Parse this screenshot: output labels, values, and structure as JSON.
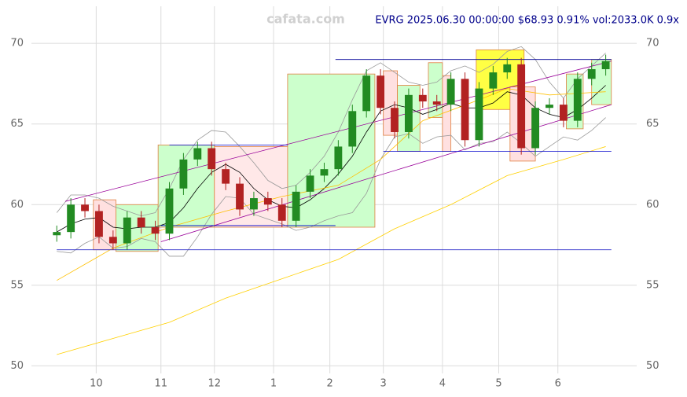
{
  "chart_data": {
    "type": "candlestick",
    "title": "EVRG 2025.06.30 00:00:00 $68.93 0.91% vol:2033.0K 0.9x",
    "watermark": "cafata.com",
    "xlim": [
      -9,
      206
    ],
    "ylim": [
      48.8,
      72.3
    ],
    "yticks": [
      50,
      55,
      60,
      65,
      70
    ],
    "xticks": [
      {
        "value": 14,
        "label": "10"
      },
      {
        "value": 37,
        "label": "11"
      },
      {
        "value": 56,
        "label": "12"
      },
      {
        "value": 77,
        "label": "1"
      },
      {
        "value": 97,
        "label": "2"
      },
      {
        "value": 116,
        "label": "3"
      },
      {
        "value": 137,
        "label": "4"
      },
      {
        "value": 157,
        "label": "5"
      },
      {
        "value": 178,
        "label": "6"
      }
    ],
    "grid": true,
    "up_color": "#228b22",
    "down_color": "#b22222",
    "x": [
      0,
      5,
      10,
      15,
      20,
      25,
      30,
      35,
      40,
      45,
      50,
      55,
      60,
      65,
      70,
      75,
      80,
      85,
      90,
      95,
      100,
      105,
      110,
      115,
      120,
      125,
      130,
      135,
      140,
      145,
      150,
      155,
      160,
      165,
      170,
      175,
      180,
      185,
      190,
      195
    ],
    "open": [
      58.1,
      58.3,
      60.0,
      59.6,
      58.0,
      57.6,
      59.2,
      58.6,
      58.2,
      61.0,
      62.8,
      63.5,
      62.2,
      61.3,
      59.7,
      60.4,
      60.0,
      59.0,
      60.8,
      61.8,
      62.2,
      63.6,
      65.8,
      68.0,
      66.0,
      64.5,
      66.8,
      66.4,
      66.2,
      67.8,
      64.0,
      67.2,
      68.2,
      68.7,
      63.5,
      66.0,
      66.2,
      65.2,
      67.8,
      68.4
    ],
    "high": [
      58.7,
      60.4,
      60.4,
      60.0,
      58.4,
      59.6,
      59.6,
      59.0,
      61.4,
      63.2,
      63.9,
      63.9,
      62.6,
      61.7,
      60.8,
      60.8,
      60.4,
      61.2,
      62.2,
      62.6,
      64.0,
      66.2,
      68.4,
      68.4,
      66.4,
      67.2,
      67.2,
      66.8,
      68.2,
      68.2,
      67.6,
      68.6,
      69.1,
      69.1,
      66.4,
      66.6,
      66.6,
      68.2,
      68.8,
      69.3
    ],
    "low": [
      57.7,
      57.9,
      59.2,
      57.6,
      57.2,
      57.2,
      58.2,
      57.8,
      57.8,
      60.6,
      62.4,
      61.8,
      60.9,
      59.3,
      59.3,
      59.6,
      58.6,
      58.6,
      60.4,
      61.4,
      61.8,
      63.2,
      65.4,
      65.6,
      64.1,
      64.1,
      66.0,
      65.8,
      65.8,
      63.6,
      63.6,
      66.8,
      67.8,
      63.1,
      63.1,
      65.6,
      64.8,
      64.8,
      67.4,
      68.0
    ],
    "close": [
      58.3,
      60.0,
      59.6,
      58.0,
      57.6,
      59.2,
      58.6,
      58.2,
      61.0,
      62.8,
      63.5,
      62.2,
      61.3,
      59.7,
      60.4,
      60.0,
      59.0,
      60.8,
      61.8,
      62.2,
      63.6,
      65.8,
      68.0,
      66.0,
      64.5,
      66.8,
      66.4,
      66.2,
      67.8,
      64.0,
      67.2,
      68.2,
      68.7,
      63.5,
      66.0,
      66.2,
      65.2,
      67.8,
      68.4,
      68.9
    ],
    "boxes": [
      {
        "x": [
          13,
          21
        ],
        "y": [
          60.3,
          57.2
        ],
        "color": "#ffe0e0"
      },
      {
        "x": [
          21,
          36
        ],
        "y": [
          60.0,
          57.1
        ],
        "color": "#ccffcc"
      },
      {
        "x": [
          36,
          56
        ],
        "y": [
          63.7,
          58.6
        ],
        "color": "#ccffcc"
      },
      {
        "x": [
          56,
          82
        ],
        "y": [
          63.6,
          58.6
        ],
        "color": "#ffe8e8"
      },
      {
        "x": [
          82,
          113
        ],
        "y": [
          68.1,
          58.6
        ],
        "color": "#ccffcc"
      },
      {
        "x": [
          116,
          121
        ],
        "y": [
          68.3,
          64.3
        ],
        "color": "#ffe0e0"
      },
      {
        "x": [
          121,
          129
        ],
        "y": [
          67.4,
          63.3
        ],
        "color": "#ccffcc"
      },
      {
        "x": [
          132,
          137
        ],
        "y": [
          68.8,
          65.4
        ],
        "color": "#ccffcc"
      },
      {
        "x": [
          137,
          140
        ],
        "y": [
          68.0,
          63.3
        ],
        "color": "#ffe0e0"
      },
      {
        "x": [
          149,
          166
        ],
        "y": [
          69.6,
          65.9
        ],
        "color": "#ffff44"
      },
      {
        "x": [
          161,
          170
        ],
        "y": [
          67.3,
          62.7
        ],
        "color": "#ffe0e0"
      },
      {
        "x": [
          181,
          187
        ],
        "y": [
          68.1,
          64.7
        ],
        "color": "#ccffcc"
      },
      {
        "x": [
          190,
          197
        ],
        "y": [
          69.0,
          66.2
        ],
        "color": "#ccffcc"
      }
    ],
    "lines": [
      {
        "color": "#000000",
        "width": 0.8,
        "x": [
          0,
          5,
          10,
          15,
          20,
          25,
          30,
          35,
          40,
          45,
          50,
          55,
          60,
          65,
          70,
          75,
          80,
          85,
          90,
          95,
          100,
          105,
          110,
          115,
          120,
          125,
          130,
          135,
          140,
          145,
          150,
          155,
          160,
          165,
          170,
          175,
          180,
          185,
          190,
          195
        ],
        "values": [
          58.3,
          58.8,
          59.1,
          59.2,
          58.6,
          58.5,
          58.6,
          58.6,
          58.9,
          59.8,
          61.0,
          62.0,
          62.5,
          62.0,
          61.0,
          60.3,
          59.9,
          59.8,
          60.3,
          61.0,
          61.9,
          63.0,
          64.5,
          65.8,
          66.2,
          66.0,
          65.6,
          65.9,
          66.3,
          66.0,
          66.0,
          66.3,
          67.0,
          66.8,
          66.0,
          65.6,
          65.4,
          65.9,
          66.6,
          67.4
        ]
      },
      {
        "color": "#999999",
        "width": 0.8,
        "x": [
          0,
          5,
          10,
          15,
          20,
          25,
          30,
          35,
          40,
          45,
          50,
          55,
          60,
          65,
          70,
          75,
          80,
          85,
          90,
          95,
          100,
          105,
          110,
          115,
          120,
          125,
          130,
          135,
          140,
          145,
          150,
          155,
          160,
          165,
          170,
          175,
          180,
          185,
          190,
          195
        ],
        "values": [
          59.5,
          60.6,
          60.6,
          60.4,
          59.9,
          59.6,
          59.3,
          59.5,
          61.0,
          62.8,
          64.0,
          64.6,
          64.5,
          63.6,
          62.6,
          61.5,
          61.0,
          61.2,
          62.0,
          63.0,
          64.5,
          66.5,
          68.3,
          68.8,
          68.2,
          67.6,
          67.4,
          67.6,
          68.3,
          68.6,
          68.2,
          68.7,
          69.5,
          69.8,
          69.0,
          67.6,
          66.6,
          67.8,
          68.6,
          69.4
        ]
      },
      {
        "color": "#999999",
        "width": 0.8,
        "x": [
          0,
          5,
          10,
          15,
          20,
          25,
          30,
          35,
          40,
          45,
          50,
          55,
          60,
          65,
          70,
          75,
          80,
          85,
          90,
          95,
          100,
          105,
          110,
          115,
          120,
          125,
          130,
          135,
          140,
          145,
          150,
          155,
          160,
          165,
          170,
          175,
          180,
          185,
          190,
          195
        ],
        "values": [
          57.1,
          57.0,
          57.6,
          58.0,
          57.3,
          57.4,
          57.9,
          57.7,
          56.8,
          56.8,
          58.0,
          59.4,
          60.5,
          60.4,
          59.4,
          59.1,
          58.8,
          58.4,
          58.6,
          59.0,
          59.3,
          59.5,
          60.7,
          62.8,
          64.2,
          64.4,
          63.8,
          64.2,
          64.3,
          63.4,
          63.8,
          63.9,
          64.5,
          63.8,
          63.0,
          63.6,
          64.2,
          64.0,
          64.6,
          65.4
        ]
      },
      {
        "color": "#ffc000",
        "width": 0.8,
        "x": [
          0,
          20,
          40,
          60,
          80,
          100,
          115,
          130,
          150,
          160,
          175,
          195
        ],
        "values": [
          55.3,
          57.3,
          58.6,
          59.6,
          60.5,
          61.2,
          62.8,
          65.2,
          66.5,
          67.2,
          66.8,
          67.0
        ]
      },
      {
        "color": "#ffd000",
        "width": 0.8,
        "x": [
          0,
          20,
          40,
          60,
          80,
          100,
          120,
          140,
          160,
          180,
          195
        ],
        "values": [
          50.7,
          51.7,
          52.7,
          54.2,
          55.4,
          56.6,
          58.5,
          60.0,
          61.8,
          62.8,
          63.6
        ]
      }
    ],
    "segments": [
      {
        "x": [
          3,
          197
        ],
        "y": [
          60.2,
          68.9
        ],
        "color": "#990099"
      },
      {
        "x": [
          37,
          197
        ],
        "y": [
          57.7,
          66.2
        ],
        "color": "#990099"
      },
      {
        "x": [
          99,
          197
        ],
        "y": [
          69.0,
          69.0
        ],
        "color": "#000099"
      },
      {
        "x": [
          40,
          82
        ],
        "y": [
          63.7,
          63.7
        ],
        "color": "#0000cc"
      },
      {
        "x": [
          116,
          197
        ],
        "y": [
          63.3,
          63.3
        ],
        "color": "#0000cc"
      },
      {
        "x": [
          37,
          99
        ],
        "y": [
          58.7,
          58.7
        ],
        "color": "#0000cc"
      },
      {
        "x": [
          0,
          197
        ],
        "y": [
          57.2,
          57.2
        ],
        "color": "#3333cc"
      }
    ]
  }
}
